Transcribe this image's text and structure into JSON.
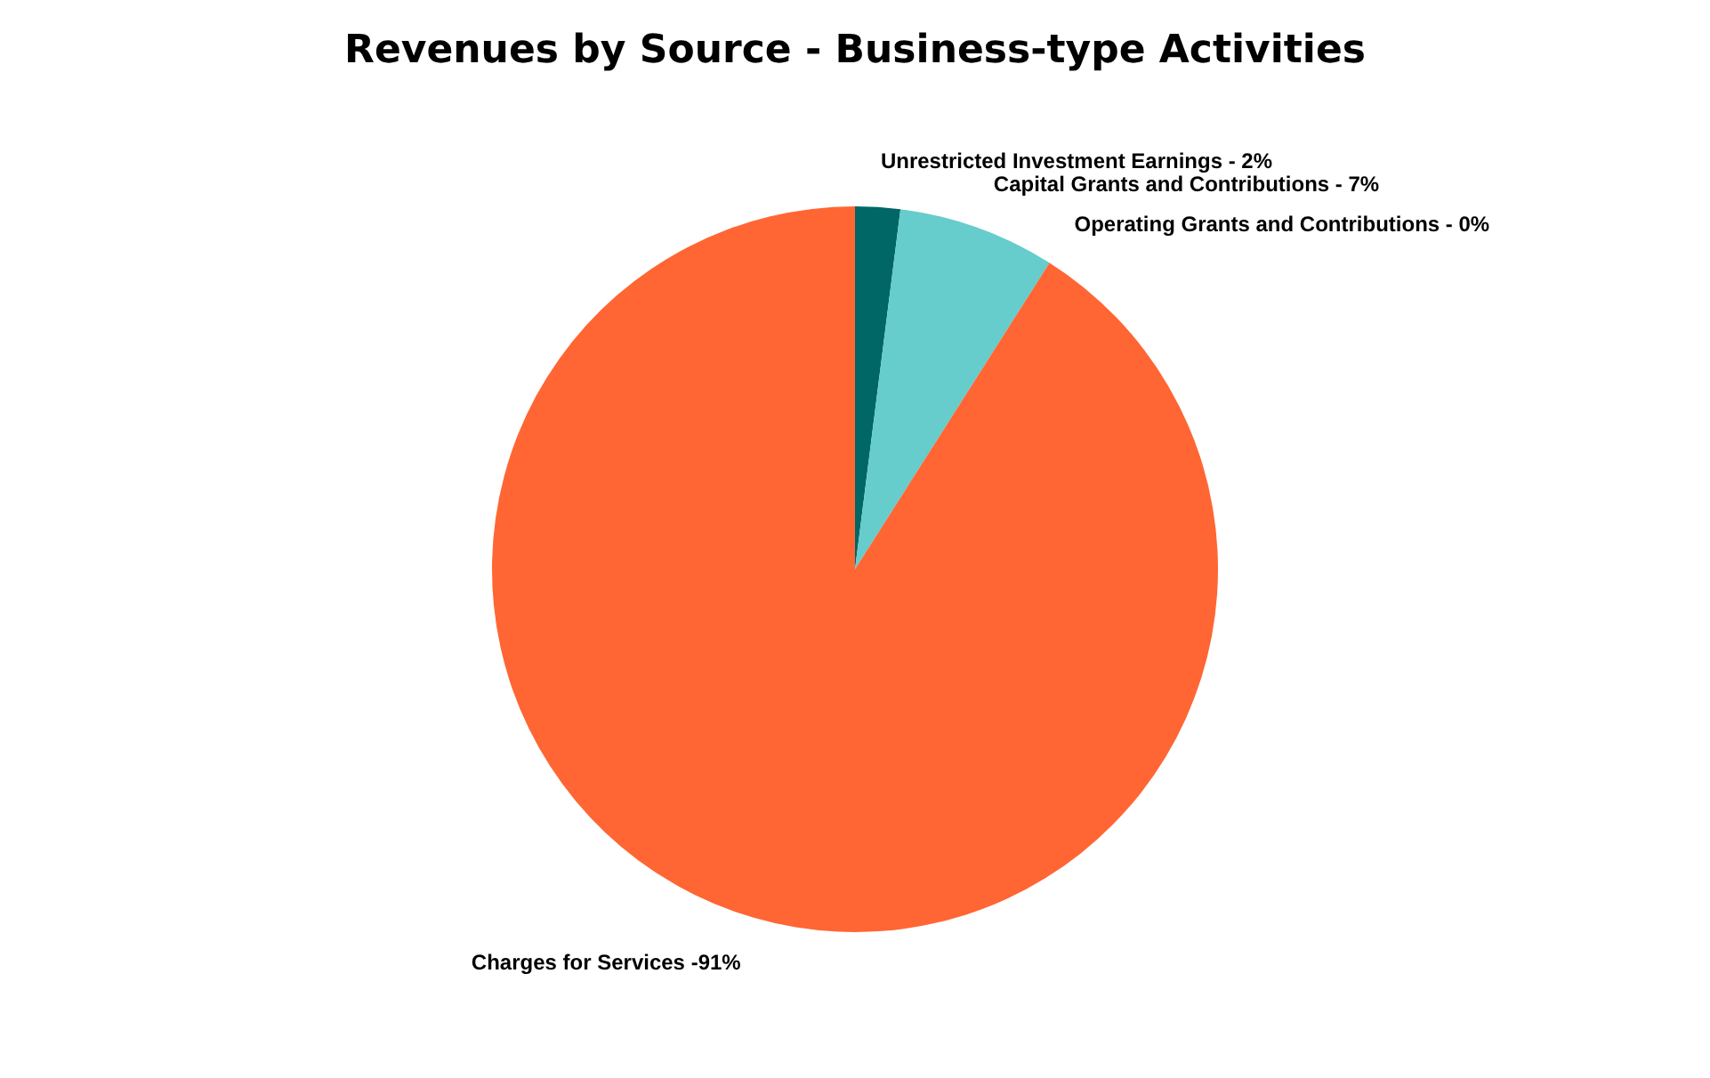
{
  "chart_data": {
    "type": "pie",
    "title": "Revenues by Source - Business-type Activities",
    "categories": [
      "Unrestricted Investment Earnings - 2%",
      "Capital Grants and Contributions - 7%",
      "Operating Grants and Contributions - 0%",
      "Charges for Services -91%"
    ],
    "values": [
      2,
      7,
      0,
      91
    ],
    "colors": [
      "#006666",
      "#66cccc",
      "#4f81bd",
      "#ff6633"
    ],
    "legend": false
  }
}
